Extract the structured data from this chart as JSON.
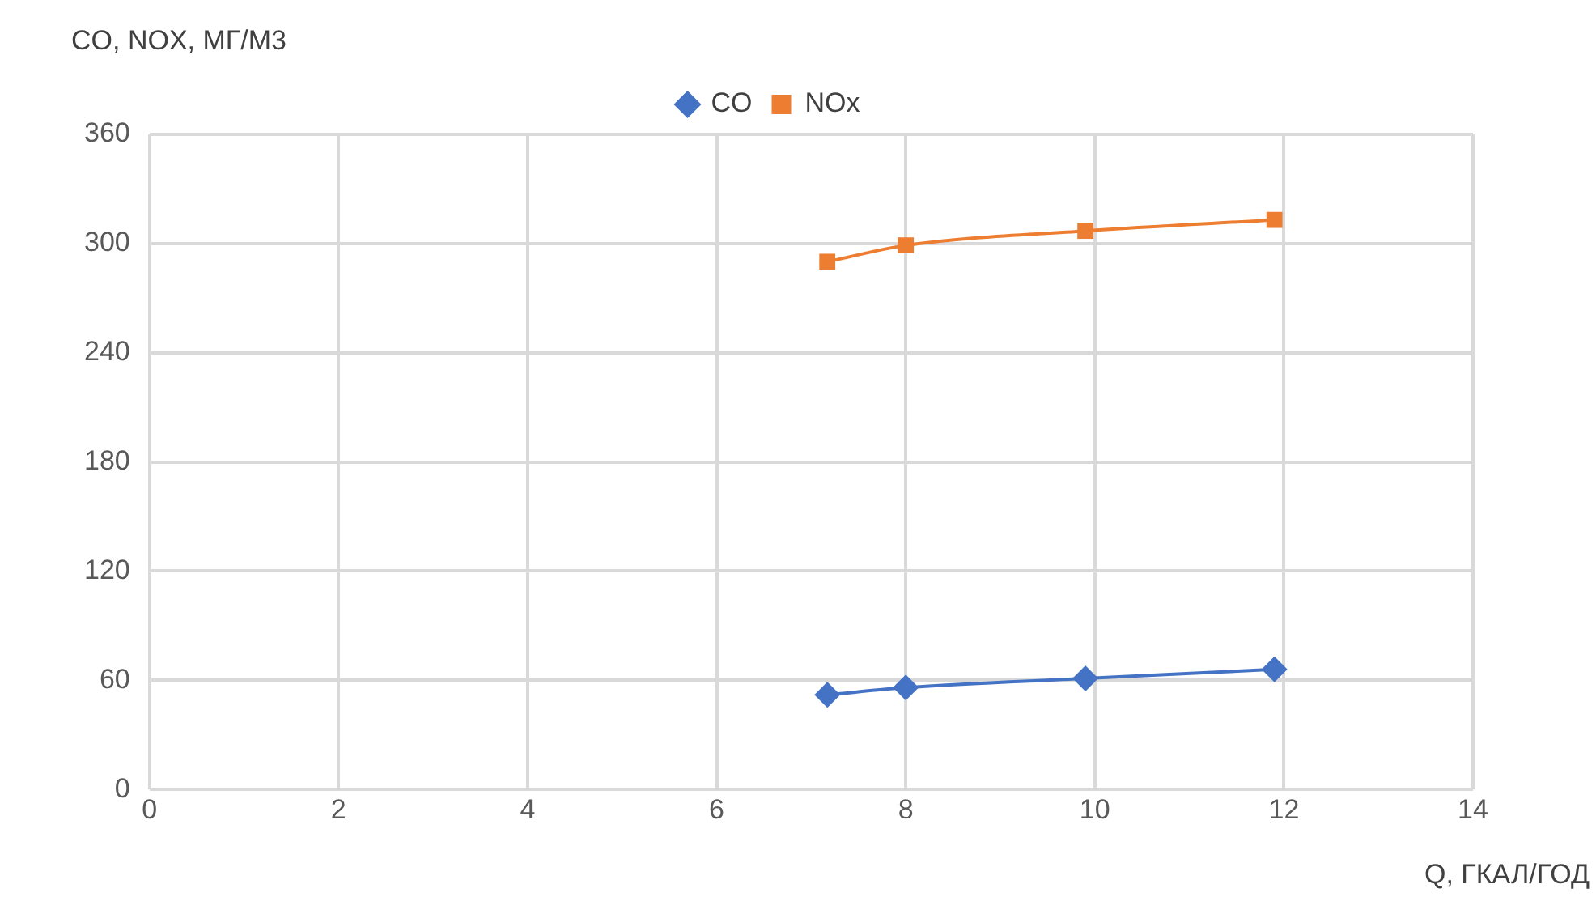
{
  "chart_data": {
    "type": "line",
    "xlabel": "Q, ГКАЛ/ГОД",
    "ylabel": "CO, NOX, МГ/М3",
    "series": [
      {
        "name": "CO",
        "color": "#4472c4",
        "marker": "diamond",
        "x": [
          7.17,
          8.0,
          9.9,
          11.9
        ],
        "values": [
          52,
          56,
          61,
          66
        ]
      },
      {
        "name": "NOx",
        "color": "#ed7d31",
        "marker": "square",
        "x": [
          7.17,
          8.0,
          9.9,
          11.9
        ],
        "values": [
          290,
          299,
          307,
          313
        ]
      }
    ],
    "xlim": [
      0,
      14
    ],
    "xticks": [
      0,
      2,
      4,
      6,
      8,
      10,
      12,
      14
    ],
    "ylim": [
      0,
      360
    ],
    "yticks": [
      0,
      60,
      120,
      180,
      240,
      300,
      360
    ],
    "grid": true,
    "legend": "top",
    "line_style": "solid"
  }
}
